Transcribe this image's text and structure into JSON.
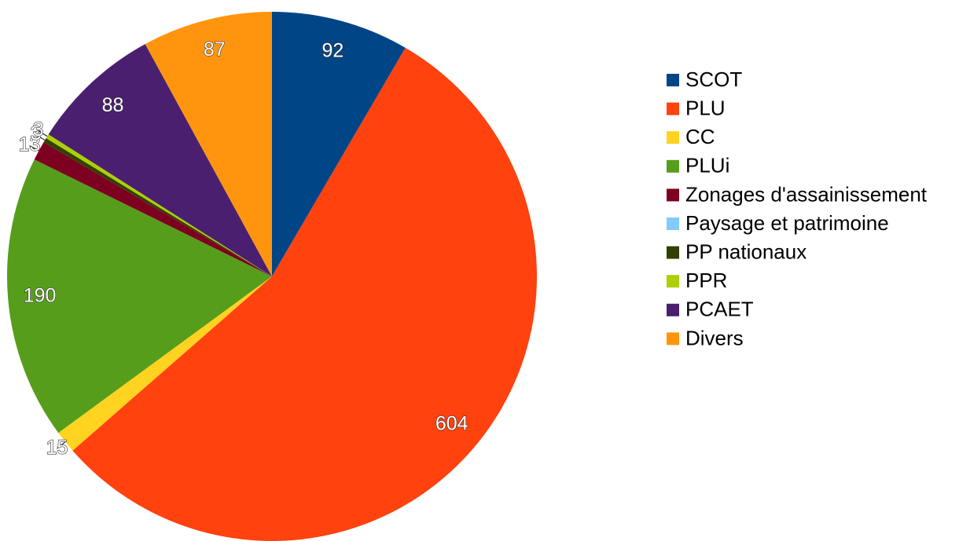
{
  "chart_data": {
    "type": "pie",
    "categories": [
      "SCOT",
      "PLU",
      "CC",
      "PLUi",
      "Zonages d'assainissement",
      "Paysage et patrimoine",
      "PP nationaux",
      "PPR",
      "PCAET",
      "Divers"
    ],
    "values": [
      92,
      604,
      15,
      190,
      13,
      null,
      3,
      3,
      88,
      87
    ],
    "colors": [
      "#004586",
      "#ff420e",
      "#ffd320",
      "#579d1c",
      "#7e0021",
      "#83caff",
      "#314004",
      "#aecf00",
      "#4b1f6f",
      "#ff950e"
    ],
    "legend": "right"
  }
}
